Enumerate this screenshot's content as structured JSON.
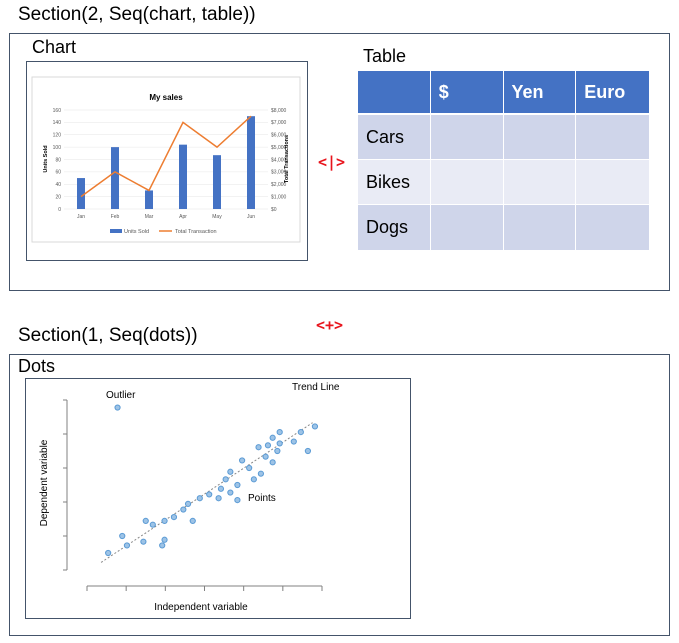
{
  "section1": {
    "title": "Section(2, Seq(chart, table))",
    "chart_label": "Chart",
    "table_label": "Table",
    "operator": "<|>"
  },
  "between_operator": "<+>",
  "section2": {
    "title": "Section(1, Seq(dots))",
    "dots_label": "Dots"
  },
  "table": {
    "headers": [
      "",
      "$",
      "Yen",
      "Euro"
    ],
    "rows": [
      "Cars",
      "Bikes",
      "Dogs"
    ]
  },
  "chart_data": [
    {
      "type": "bar",
      "title": "My sales",
      "categories": [
        "Jan",
        "Feb",
        "Mar",
        "Apr",
        "May",
        "Jun"
      ],
      "series": [
        {
          "name": "Units Sold",
          "type": "bar",
          "axis": "left",
          "values": [
            50,
            100,
            30,
            104,
            87,
            150
          ],
          "color": "#4472c4"
        },
        {
          "name": "Total Transaction",
          "type": "line",
          "axis": "right",
          "values": [
            1000,
            3000,
            1500,
            7000,
            5000,
            7500
          ],
          "color": "#ed7d31"
        }
      ],
      "ylabel": "Units Sold",
      "y2label": "Total Transactions",
      "ylim": [
        0,
        160
      ],
      "yticks": [
        "0",
        "20",
        "40",
        "60",
        "80",
        "100",
        "120",
        "140",
        "160"
      ],
      "y2lim": [
        0,
        8000
      ],
      "y2ticks": [
        "$0",
        "$1,000",
        "$2,000",
        "$3,000",
        "$4,000",
        "$5,000",
        "$6,000",
        "$7,000",
        "$8,000"
      ],
      "grid": true,
      "legend": "bottom"
    },
    {
      "type": "scatter",
      "xlabel": "Independent variable",
      "ylabel": "Dependent variable",
      "annotations": [
        "Outlier",
        "Trend Line",
        "Points"
      ],
      "outlier": [
        1.3,
        8.6
      ],
      "trend": [
        [
          0.6,
          0.4
        ],
        [
          9.6,
          7.8
        ]
      ],
      "points": [
        [
          0.9,
          0.9
        ],
        [
          1.7,
          1.3
        ],
        [
          1.5,
          1.8
        ],
        [
          2.4,
          1.5
        ],
        [
          2.8,
          2.4
        ],
        [
          3.2,
          1.3
        ],
        [
          3.3,
          1.6
        ],
        [
          3.3,
          2.6
        ],
        [
          2.5,
          2.6
        ],
        [
          3.7,
          2.8
        ],
        [
          4.1,
          3.2
        ],
        [
          4.3,
          3.5
        ],
        [
          4.5,
          2.6
        ],
        [
          4.8,
          3.8
        ],
        [
          5.2,
          4.0
        ],
        [
          5.6,
          3.8
        ],
        [
          5.7,
          4.3
        ],
        [
          5.9,
          4.8
        ],
        [
          6.1,
          4.1
        ],
        [
          6.1,
          5.2
        ],
        [
          6.4,
          3.7
        ],
        [
          6.6,
          5.8
        ],
        [
          6.4,
          4.5
        ],
        [
          6.9,
          5.4
        ],
        [
          7.1,
          4.8
        ],
        [
          7.4,
          5.1
        ],
        [
          7.6,
          6.0
        ],
        [
          7.3,
          6.5
        ],
        [
          7.9,
          5.7
        ],
        [
          8.1,
          6.3
        ],
        [
          8.2,
          7.3
        ],
        [
          7.9,
          7.0
        ],
        [
          7.7,
          6.6
        ],
        [
          8.8,
          6.8
        ],
        [
          9.1,
          7.3
        ],
        [
          9.4,
          6.3
        ],
        [
          9.7,
          7.6
        ],
        [
          8.2,
          6.7
        ]
      ]
    }
  ]
}
